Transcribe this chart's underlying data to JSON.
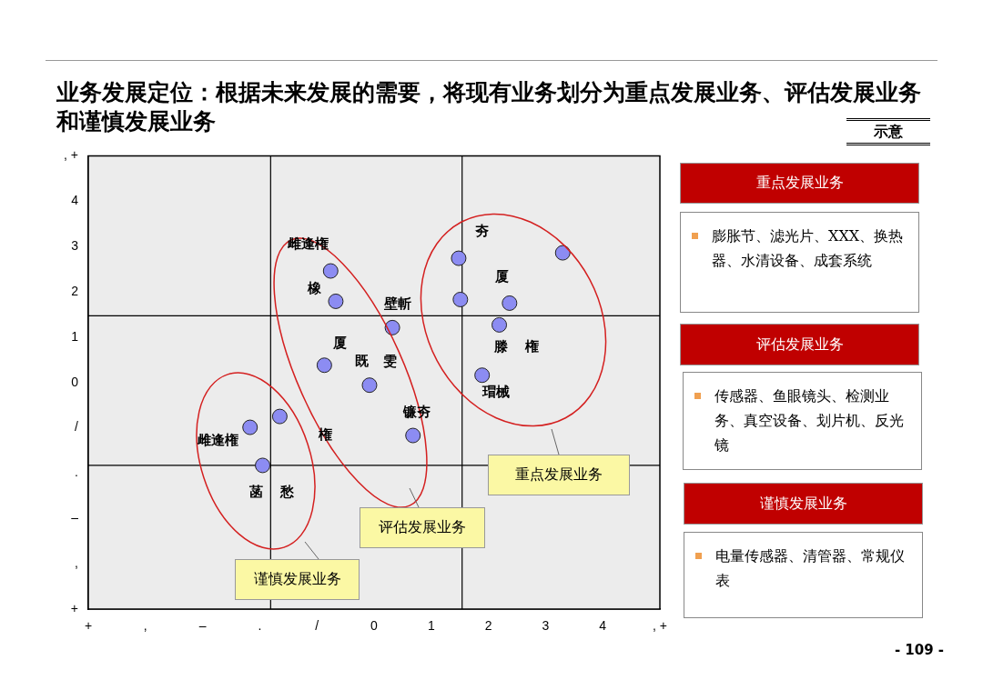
{
  "chart_data": {
    "type": "scatter",
    "title": "业务发展定位：根据未来发展的需要，将现有业务划分为重点发展业务、评估发展业务和谨慎发展业务",
    "marker": "circle",
    "series": [
      {
        "color": "#8c8cf2",
        "x": [
          -0.76,
          -0.67,
          -0.87,
          -0.08,
          0.32,
          0.68,
          1.48,
          1.51,
          2.37,
          2.19,
          1.89,
          3.3,
          -2.17,
          -1.65,
          -1.95
        ],
        "values": [
          2.46,
          1.79,
          0.38,
          -0.06,
          1.21,
          -1.17,
          2.74,
          1.83,
          1.75,
          1.27,
          0.16,
          2.86,
          -0.99,
          -0.75,
          -1.83
        ]
      }
    ],
    "xlim": [
      -5,
      5
    ],
    "xticks": [
      {
        "value": -5,
        "label": "+"
      },
      {
        "value": -4,
        "label": ","
      },
      {
        "value": -3,
        "label": "–"
      },
      {
        "value": -2,
        "label": "."
      },
      {
        "value": -1,
        "label": "/"
      },
      0,
      1,
      2,
      3,
      4,
      {
        "value": 5,
        "label": ", +"
      }
    ],
    "ylim": [
      -5,
      5
    ],
    "yticks": [
      {
        "value": -5,
        "label": "+"
      },
      {
        "value": -4,
        "label": ","
      },
      {
        "value": -3,
        "label": "–"
      },
      {
        "value": -2,
        "label": "."
      },
      {
        "value": -1,
        "label": "/"
      },
      0,
      1,
      2,
      3,
      4,
      {
        "value": 5,
        "label": ", +"
      }
    ],
    "ref_lines": [
      {
        "axis": "x",
        "value": -1.81,
        "color": "#000000"
      },
      {
        "axis": "x",
        "value": 1.54,
        "color": "#000000"
      },
      {
        "axis": "y",
        "value": 1.47,
        "color": "#000000"
      },
      {
        "axis": "y",
        "value": -1.83,
        "color": "#000000"
      }
    ],
    "annotations": [
      "示意",
      "重点发展业务",
      "评估发展业务",
      "谨慎发展业务",
      "重点发展业务",
      "膨胀节、滤光片、XXX、换热器、水清设备、成套系统",
      "评估发展业务",
      "传感器、鱼眼镜头、检测业务、真空设备、划片机、反光镜",
      "谨慎发展业务",
      "电量传感器、清管器、常规仪表",
      "- 109 -",
      "雌逢権",
      "橡",
      "壁斬",
      "厦",
      "既",
      "雯",
      "権",
      "镰夯",
      "夯",
      "厦",
      "滕",
      "権",
      "瑁械",
      "雌逢権",
      "菡",
      "愁"
    ]
  }
}
